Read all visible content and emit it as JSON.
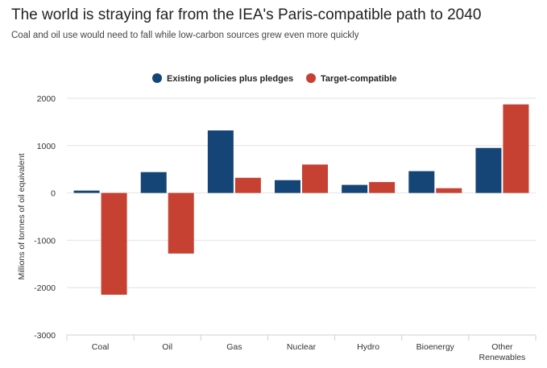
{
  "header": {
    "title": "The world is straying far from the IEA's Paris-compatible path to 2040",
    "subtitle": "Coal and oil use would need to fall while low-carbon sources grew even more quickly"
  },
  "colors": {
    "series_1": "#154577",
    "series_2": "#c64131",
    "grid": "#e2e2e2"
  },
  "chart_data": {
    "type": "bar",
    "title": "The world is straying far from the IEA's Paris-compatible path to 2040",
    "subtitle": "Coal and oil use would need to fall while low-carbon sources grew even more quickly",
    "xlabel": "",
    "ylabel": "Millions of tonnes of oil equivalent",
    "ylim": [
      -3000,
      2000
    ],
    "yticks": [
      -3000,
      -2000,
      -1000,
      0,
      1000,
      2000
    ],
    "ytick_labels": [
      "-3000",
      "-2000",
      "-1000",
      "0",
      "1000",
      "2000"
    ],
    "categories": [
      "Coal",
      "Oil",
      "Gas",
      "Nuclear",
      "Hydro",
      "Bioenergy",
      [
        "Other",
        "Renewables"
      ]
    ],
    "legend_position": "top-center",
    "grid": true,
    "series": [
      {
        "name": "Existing policies plus pledges",
        "values": [
          50,
          440,
          1320,
          270,
          170,
          460,
          950
        ]
      },
      {
        "name": "Target-compatible",
        "values": [
          -2150,
          -1280,
          320,
          600,
          230,
          100,
          1870
        ]
      }
    ]
  }
}
